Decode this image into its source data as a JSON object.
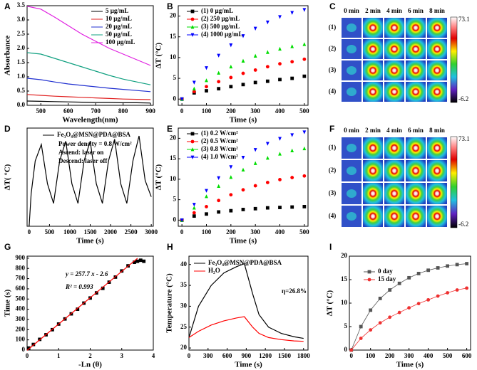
{
  "chart_data": [
    {
      "panel": "A",
      "type": "line",
      "x_label": "Wavelength(nm)",
      "y_label": "Absorbance",
      "x": [
        450,
        500,
        550,
        600,
        650,
        700,
        750,
        800,
        850,
        900
      ],
      "xlim": [
        450,
        910
      ],
      "xticks": [
        500,
        600,
        700,
        800,
        900
      ],
      "ylim": [
        0,
        3.5
      ],
      "yticks": [
        {
          "value": 0,
          "label": "0.0"
        },
        0.5,
        {
          "value": 1,
          "label": "1.0"
        },
        1.5,
        {
          "value": 2,
          "label": "2.0"
        },
        2.5,
        {
          "value": 3,
          "label": "3.0"
        },
        3.5
      ],
      "series": [
        {
          "name": "5 μg/mL",
          "color": "#000000",
          "values": [
            0.15,
            0.14,
            0.13,
            0.12,
            0.11,
            0.1,
            0.1,
            0.09,
            0.09,
            0.08
          ]
        },
        {
          "name": "10 μg/mL",
          "color": "#e02020",
          "values": [
            0.38,
            0.35,
            0.32,
            0.3,
            0.28,
            0.26,
            0.24,
            0.22,
            0.21,
            0.2
          ]
        },
        {
          "name": "20 μg/mL",
          "color": "#2030d0",
          "values": [
            0.95,
            0.9,
            0.82,
            0.75,
            0.7,
            0.65,
            0.6,
            0.56,
            0.52,
            0.48
          ]
        },
        {
          "name": "50 μg/mL",
          "color": "#10a080",
          "values": [
            1.85,
            1.8,
            1.65,
            1.5,
            1.35,
            1.2,
            1.05,
            0.92,
            0.82,
            0.72
          ]
        },
        {
          "name": "100 μg/mL",
          "color": "#e020e0",
          "values": [
            3.48,
            3.38,
            3.1,
            2.8,
            2.5,
            2.25,
            2.0,
            1.8,
            1.6,
            1.4
          ]
        }
      ]
    },
    {
      "panel": "B",
      "type": "scatter",
      "x_label": "Time (s)",
      "y_label": "ΔT (°C)",
      "x": [
        0,
        50,
        100,
        150,
        200,
        250,
        300,
        350,
        400,
        450,
        500
      ],
      "xlim": [
        -15,
        515
      ],
      "xticks": [
        0,
        100,
        200,
        300,
        400,
        500
      ],
      "ylim": [
        -1.5,
        22.5
      ],
      "yticks": [
        0,
        5,
        10,
        15,
        20
      ],
      "series": [
        {
          "name": "(1)    0 μg/mL",
          "color": "#000000",
          "marker": "square",
          "values": [
            0,
            1.5,
            2,
            2.5,
            3,
            3.5,
            4,
            4.3,
            4.7,
            5,
            5.5
          ]
        },
        {
          "name": "(2)  250 μg/mL",
          "color": "#ff0000",
          "marker": "circle",
          "values": [
            0,
            1.8,
            3,
            4.2,
            5.2,
            6.2,
            7,
            7.8,
            8.5,
            9,
            9.6
          ]
        },
        {
          "name": "(3)  500 μg/mL",
          "color": "#00dd00",
          "marker": "up",
          "values": [
            0,
            2.5,
            4.5,
            6.3,
            7.8,
            9.2,
            10.4,
            11.3,
            12.1,
            12.7,
            13.2
          ]
        },
        {
          "name": "(4) 1000 μg/mL",
          "color": "#0000ff",
          "marker": "down",
          "values": [
            0,
            4,
            7.5,
            10.5,
            13,
            15.2,
            17,
            18.5,
            19.8,
            20.8,
            21.5
          ]
        }
      ]
    },
    {
      "panel": "C",
      "type": "image",
      "columns": [
        "0 min",
        "2 min",
        "4 min",
        "6 min",
        "8 min"
      ],
      "rows": [
        "(1)",
        "(2)",
        "(3)",
        "(4)"
      ],
      "colorbar_ticks": [
        73.1,
        -6.2
      ]
    },
    {
      "panel": "D",
      "type": "line",
      "x_label": "Time (s)",
      "y_label": "ΔT( °C)",
      "x": [
        0,
        50,
        150,
        300,
        450,
        600,
        750,
        900,
        1050,
        1200,
        1350,
        1500,
        1650,
        1800,
        1950,
        2100,
        2250,
        2400,
        2550,
        2700,
        2850,
        3000
      ],
      "xlim": [
        -50,
        3050
      ],
      "xticks": [
        0,
        500,
        1000,
        1500,
        2000,
        2500,
        3000
      ],
      "ylim": [
        0,
        15
      ],
      "series": [
        {
          "name": "Fe₃O₄@MSN@PDA@BSA",
          "color": "#000000",
          "values": [
            0,
            5,
            10,
            12.5,
            6.5,
            3.5,
            10,
            13,
            6.5,
            3.5,
            10,
            13,
            6.5,
            3.5,
            10,
            13.3,
            6.5,
            3.5,
            10,
            13.8,
            7,
            4.5
          ]
        }
      ],
      "annotations": [
        "Power density = 0.8 W/cm²",
        "Ascend: laser on",
        "Descend: laser off"
      ]
    },
    {
      "panel": "E",
      "type": "scatter",
      "x_label": "Time (s)",
      "y_label": "ΔT (°C)",
      "x": [
        0,
        50,
        100,
        150,
        200,
        250,
        300,
        350,
        400,
        450,
        500
      ],
      "xlim": [
        -15,
        515
      ],
      "xticks": [
        0,
        100,
        200,
        300,
        400,
        500
      ],
      "ylim": [
        -1.5,
        22.5
      ],
      "yticks": [
        0,
        5,
        10,
        15,
        20
      ],
      "series": [
        {
          "name": "(1) 0.2 W/cm²",
          "color": "#000000",
          "marker": "square",
          "values": [
            0,
            1,
            1.5,
            2,
            2.3,
            2.6,
            2.8,
            3,
            3.1,
            3.2,
            3.3
          ]
        },
        {
          "name": "(2) 0.5 W/cm²",
          "color": "#ff0000",
          "marker": "circle",
          "values": [
            0,
            1.8,
            3.3,
            4.8,
            6.2,
            7.4,
            8.4,
            9.2,
            9.9,
            10.4,
            10.8
          ]
        },
        {
          "name": "(3) 0.8 W/cm²",
          "color": "#00dd00",
          "marker": "up",
          "values": [
            0,
            3,
            5.8,
            8.3,
            10.5,
            12.3,
            13.9,
            15.2,
            16.2,
            17,
            17.5
          ]
        },
        {
          "name": "(4) 1.0 W/cm²",
          "color": "#0000ff",
          "marker": "down",
          "values": [
            0,
            3.8,
            7.2,
            10.3,
            13,
            15.3,
            17.2,
            18.7,
            19.9,
            20.8,
            21.5
          ]
        }
      ]
    },
    {
      "panel": "F",
      "type": "image",
      "columns": [
        "0 min",
        "2 min",
        "4 min",
        "6 min",
        "8 min"
      ],
      "rows": [
        "(1)",
        "(2)",
        "(3)",
        "(4)"
      ],
      "colorbar_ticks": [
        73.1,
        -6.2
      ]
    },
    {
      "panel": "G",
      "type": "scatter",
      "x_label": "-Ln (θ)",
      "y_label": "Time (s)",
      "xlim": [
        0,
        4
      ],
      "xticks": [
        0,
        1,
        2,
        3,
        4
      ],
      "ylim": [
        0,
        920
      ],
      "yticks": [
        0,
        100,
        200,
        300,
        400,
        500,
        600,
        700,
        800,
        900
      ],
      "series": [
        {
          "color": "#000000",
          "marker": "square",
          "x": [
            0.05,
            0.2,
            0.4,
            0.6,
            0.8,
            1.0,
            1.2,
            1.4,
            1.6,
            1.8,
            2.0,
            2.2,
            2.4,
            2.6,
            2.8,
            3.0,
            3.2,
            3.4,
            3.5,
            3.6,
            3.7
          ],
          "values": [
            20,
            55,
            105,
            150,
            200,
            255,
            305,
            355,
            400,
            460,
            510,
            560,
            605,
            665,
            715,
            775,
            825,
            860,
            870,
            880,
            870
          ]
        },
        {
          "color": "#ff0000",
          "x": [
            0,
            3.5
          ],
          "values": [
            -2.6,
            899.4
          ]
        }
      ],
      "annotations": [
        "y = 257.7 x - 2.6",
        "R² = 0.993"
      ]
    },
    {
      "panel": "H",
      "type": "line",
      "x_label": "Time (s)",
      "y_label": "Temperature (°C)",
      "x": [
        0,
        150,
        350,
        550,
        750,
        870,
        1000,
        1100,
        1250,
        1450,
        1650,
        1800
      ],
      "xlim": [
        0,
        1870
      ],
      "xticks": [
        0,
        300,
        600,
        900,
        1200,
        1500,
        1800
      ],
      "ylim": [
        19.5,
        42
      ],
      "yticks": [
        20,
        25,
        30,
        35,
        40
      ],
      "series": [
        {
          "name": "Fe₃O₄@MSN@PDA@BSA",
          "color": "#000000",
          "values": [
            22.5,
            30,
            35,
            38,
            39.5,
            40.2,
            33,
            28,
            25,
            23.5,
            22.7,
            22.3
          ]
        },
        {
          "name": "H₂O",
          "color": "#ff0000",
          "values": [
            22.5,
            24,
            25.5,
            26.5,
            27.2,
            27.5,
            25,
            23.5,
            22.5,
            22,
            21.7,
            21.6
          ]
        }
      ],
      "annotations": [
        "η=26.8%"
      ]
    },
    {
      "panel": "I",
      "type": "line",
      "x_label": "Time (s)",
      "y_label": "ΔT (°C)",
      "x": [
        0,
        50,
        100,
        150,
        200,
        250,
        300,
        350,
        400,
        450,
        500,
        550,
        600
      ],
      "xlim": [
        -10,
        620
      ],
      "xticks": [
        0,
        100,
        200,
        300,
        400,
        500,
        600
      ],
      "ylim": [
        0,
        20
      ],
      "yticks": [
        0,
        5,
        10,
        15,
        20
      ],
      "series": [
        {
          "name": "0  day",
          "color": "#555555",
          "marker": "square",
          "values": [
            0,
            5,
            8.5,
            11,
            12.8,
            14.2,
            15.4,
            16.3,
            17,
            17.5,
            17.9,
            18.2,
            18.4
          ]
        },
        {
          "name": "15 day",
          "color": "#ee3030",
          "marker": "circle",
          "values": [
            0,
            2.5,
            4.3,
            5.8,
            7,
            8,
            9,
            9.9,
            10.7,
            11.5,
            12.2,
            12.8,
            13.2
          ]
        }
      ]
    }
  ]
}
